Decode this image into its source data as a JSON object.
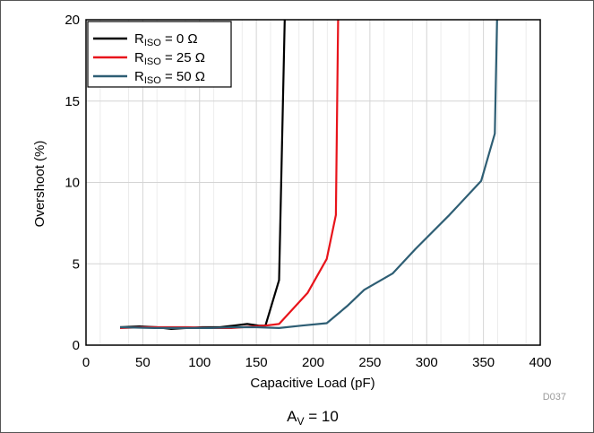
{
  "chart_data": {
    "type": "line",
    "xlabel": "Capacitive Load (pF)",
    "ylabel": "Overshoot (%)",
    "xlim": [
      0,
      400
    ],
    "ylim": [
      0,
      20
    ],
    "xticks": [
      0,
      50,
      100,
      150,
      200,
      250,
      300,
      350,
      400
    ],
    "yticks": [
      0,
      5,
      10,
      15,
      20
    ],
    "grid": true,
    "legend_position": "top-left",
    "figure_id": "D037",
    "caption": {
      "main": "A",
      "sub": "V",
      "rest": " = 10"
    },
    "series": [
      {
        "legend": {
          "main": "R",
          "sub": "ISO",
          "rest": " = 0 Ω"
        },
        "color": "#000000",
        "x": [
          30,
          47,
          62,
          75,
          88,
          102,
          118,
          130,
          142,
          152,
          158,
          170,
          175
        ],
        "y": [
          1.1,
          1.15,
          1.1,
          1.0,
          1.05,
          1.1,
          1.1,
          1.2,
          1.3,
          1.2,
          1.2,
          4.0,
          20
        ]
      },
      {
        "legend": {
          "main": "R",
          "sub": "ISO",
          "rest": " = 25 Ω"
        },
        "color": "#e8141b",
        "x": [
          30,
          50,
          70,
          90,
          108,
          128,
          148,
          158,
          170,
          195,
          212,
          220,
          222
        ],
        "y": [
          1.05,
          1.1,
          1.1,
          1.1,
          1.05,
          1.05,
          1.15,
          1.2,
          1.3,
          3.2,
          5.3,
          8.0,
          20
        ]
      },
      {
        "legend": {
          "main": "R",
          "sub": "ISO",
          "rest": " = 50 Ω"
        },
        "color": "#2e5e74",
        "x": [
          30,
          60,
          90,
          110,
          130,
          150,
          170,
          190,
          212,
          230,
          245,
          270,
          290,
          320,
          348,
          360,
          362
        ],
        "y": [
          1.1,
          1.05,
          1.05,
          1.05,
          1.1,
          1.1,
          1.05,
          1.2,
          1.35,
          2.4,
          3.4,
          4.4,
          5.9,
          8.0,
          10.1,
          13.0,
          20
        ]
      }
    ]
  }
}
